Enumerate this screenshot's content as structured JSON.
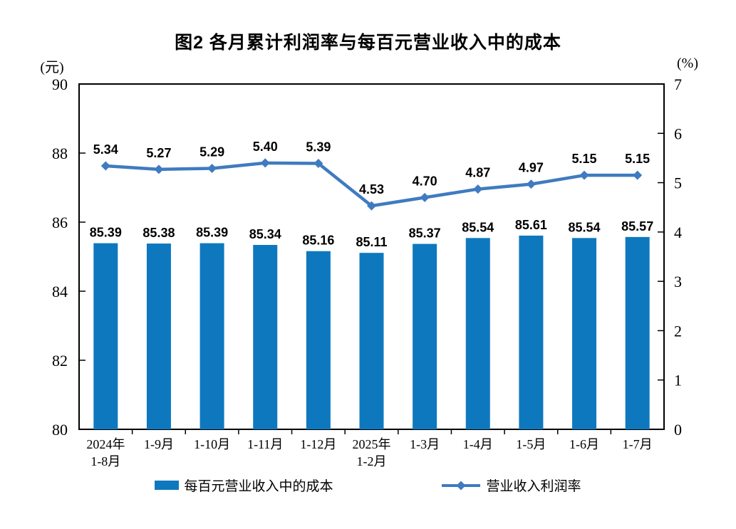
{
  "title": "图2 各月累计利润率与每百元营业收入中的成本",
  "colors": {
    "bar": "#0e78be",
    "line": "#3f7bc0",
    "axis": "#000000",
    "text": "#000000",
    "background": "#ffffff"
  },
  "legend": {
    "items": [
      {
        "label": "每百元营业收入中的成本",
        "marker": "bar-swatch"
      },
      {
        "label": "营业收入利润率",
        "marker": "line-diamond-swatch"
      }
    ]
  },
  "chart_data": {
    "type": "combo",
    "subtypes": [
      "bar",
      "line"
    ],
    "title": "图2 各月累计利润率与每百元营业收入中的成本",
    "categories": [
      "2024年\n1-8月",
      "1-9月",
      "1-10月",
      "1-11月",
      "1-12月",
      "2025年\n1-2月",
      "1-3月",
      "1-4月",
      "1-5月",
      "1-6月",
      "1-7月"
    ],
    "series": [
      {
        "name": "每百元营业收入中的成本",
        "type": "bar",
        "axis": "left",
        "values": [
          85.39,
          85.38,
          85.39,
          85.34,
          85.16,
          85.11,
          85.37,
          85.54,
          85.61,
          85.54,
          85.57
        ]
      },
      {
        "name": "营业收入利润率",
        "type": "line",
        "axis": "right",
        "values": [
          5.34,
          5.27,
          5.29,
          5.4,
          5.39,
          4.53,
          4.7,
          4.87,
          4.97,
          5.15,
          5.15
        ]
      }
    ],
    "left_axis": {
      "unit": "(元)",
      "min": 80,
      "max": 90,
      "step": 2
    },
    "right_axis": {
      "unit": "(%)",
      "min": 0,
      "max": 7,
      "step": 1
    },
    "grid": false,
    "legend_position": "bottom",
    "data_labels": true
  }
}
